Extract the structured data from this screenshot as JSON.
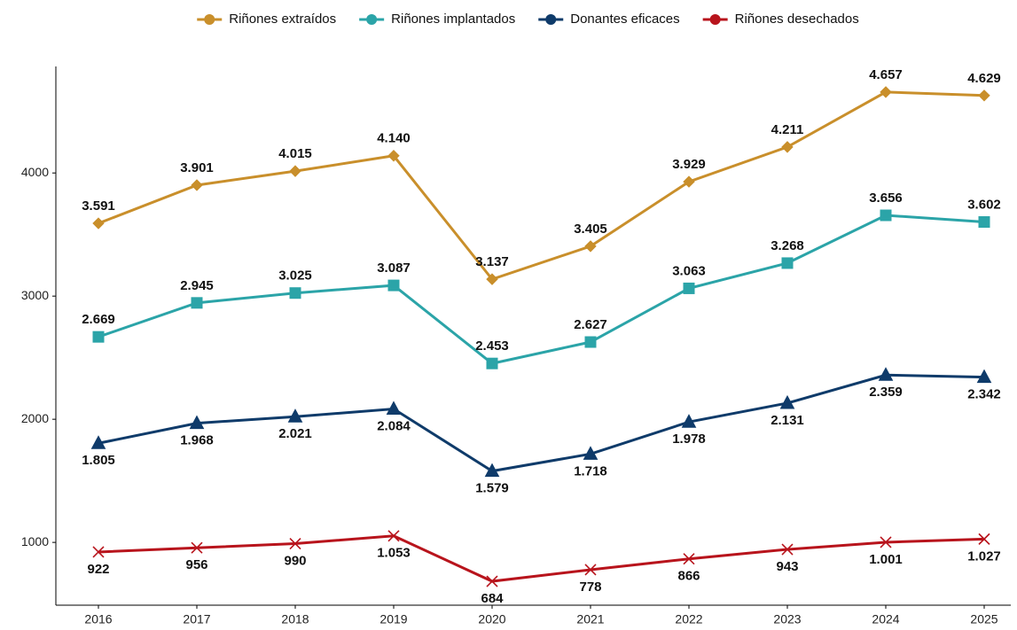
{
  "chart_data": {
    "type": "line",
    "categories": [
      "2016",
      "2017",
      "2018",
      "2019",
      "2020",
      "2021",
      "2022",
      "2023",
      "2024",
      "2025"
    ],
    "series": [
      {
        "name": "Riñones extraídos",
        "color": "#c98f2b",
        "marker": "diamond",
        "values": [
          3591,
          3901,
          4015,
          4140,
          3137,
          3405,
          3929,
          4211,
          4657,
          4629
        ],
        "value_labels": [
          "3.591",
          "3.901",
          "4.015",
          "4.140",
          "3.137",
          "3.405",
          "3.929",
          "4.211",
          "4.657",
          "4.629"
        ]
      },
      {
        "name": "Riñones implantados",
        "color": "#2ba4a8",
        "marker": "square",
        "values": [
          2669,
          2945,
          3025,
          3087,
          2453,
          2627,
          3063,
          3268,
          3656,
          3602
        ],
        "value_labels": [
          "2.669",
          "2.945",
          "3.025",
          "3.087",
          "2.453",
          "2.627",
          "3.063",
          "3.268",
          "3.656",
          "3.602"
        ]
      },
      {
        "name": "Donantes eficaces",
        "color": "#0f3b6a",
        "marker": "triangle",
        "values": [
          1805,
          1968,
          2021,
          2084,
          1579,
          1718,
          1978,
          2131,
          2359,
          2342
        ],
        "value_labels": [
          "1.805",
          "1.968",
          "2.021",
          "2.084",
          "1.579",
          "1.718",
          "1.978",
          "2.131",
          "2.359",
          "2.342"
        ]
      },
      {
        "name": "Riñones desechados",
        "color": "#b8141c",
        "marker": "x",
        "values": [
          922,
          956,
          990,
          1053,
          684,
          778,
          866,
          943,
          1001,
          1027
        ],
        "value_labels": [
          "922",
          "956",
          "990",
          "1.053",
          "684",
          "778",
          "866",
          "943",
          "1.001",
          "1.027"
        ]
      }
    ],
    "ylim": [
      490,
      4865
    ],
    "yticks": [
      1000,
      2000,
      3000,
      4000
    ],
    "grid": false,
    "legend": "top"
  }
}
